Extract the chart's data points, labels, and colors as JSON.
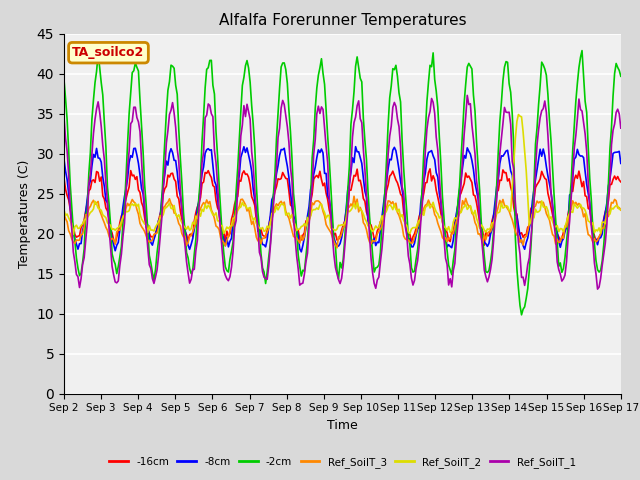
{
  "title": "Alfalfa Forerunner Temperatures",
  "xlabel": "Time",
  "ylabel": "Temperatures (C)",
  "annotation_text": "TA_soilco2",
  "annotation_bg": "#ffffcc",
  "annotation_edge": "#cc8800",
  "annotation_text_color": "#cc0000",
  "ylim": [
    0,
    45
  ],
  "yticks": [
    0,
    5,
    10,
    15,
    20,
    25,
    30,
    35,
    40,
    45
  ],
  "bg_color": "#d9d9d9",
  "plot_bg": "#f0f0f0",
  "series_names": [
    "-16cm",
    "-8cm",
    "-2cm",
    "Ref_SoilT_3",
    "Ref_SoilT_2",
    "Ref_SoilT_1"
  ],
  "legend_colors": [
    "#ff0000",
    "#0000ff",
    "#00cc00",
    "#ff8800",
    "#dddd00",
    "#aa00aa"
  ],
  "x_tick_labels": [
    "Sep 2",
    "Sep 3",
    "Sep 4",
    "Sep 5",
    "Sep 6",
    "Sep 7",
    "Sep 8",
    "Sep 9",
    "Sep 10",
    "Sep 11",
    "Sep 12",
    "Sep 13",
    "Sep 14",
    "Sep 15",
    "Sep 16",
    "Sep 17"
  ],
  "x_tick_positions": [
    0,
    1,
    2,
    3,
    4,
    5,
    6,
    7,
    8,
    9,
    10,
    11,
    12,
    13,
    14,
    15
  ]
}
